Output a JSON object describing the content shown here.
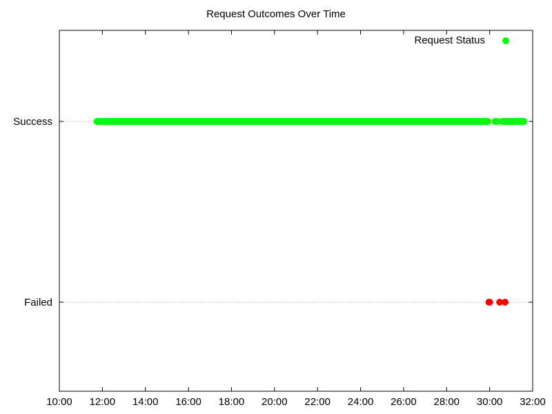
{
  "chart_data": {
    "type": "scatter",
    "title": "Request Outcomes Over Time",
    "xlabel": "",
    "ylabel": "",
    "x_ticks": [
      "10:00",
      "12:00",
      "14:00",
      "16:00",
      "18:00",
      "20:00",
      "22:00",
      "24:00",
      "26:00",
      "28:00",
      "30:00",
      "32:00"
    ],
    "xlim": [
      "10:00",
      "32:00"
    ],
    "y_categories": [
      "Failed",
      "Success"
    ],
    "grid": "horizontal dotted at category levels",
    "legend": {
      "label": "Request Status",
      "position": "top-right"
    },
    "series": [
      {
        "name": "Request Status",
        "points": [
          {
            "x_range": [
              "11:45",
              "29:55"
            ],
            "y": "Success",
            "color": "#00ff00",
            "dense": true
          },
          {
            "x_range": [
              "30:15",
              "30:20"
            ],
            "y": "Success",
            "color": "#00ff00",
            "dense": true
          },
          {
            "x_range": [
              "30:35",
              "31:35"
            ],
            "y": "Success",
            "color": "#00ff00",
            "dense": true
          },
          {
            "x": "29:58",
            "y": "Failed",
            "color": "#ff0000"
          },
          {
            "x": "30:00",
            "y": "Failed",
            "color": "#ff0000"
          },
          {
            "x": "30:28",
            "y": "Failed",
            "color": "#ff0000"
          },
          {
            "x": "30:43",
            "y": "Failed",
            "color": "#ff0000"
          }
        ]
      }
    ]
  },
  "colors": {
    "success": "#00ff00",
    "failed": "#ff0000",
    "axis": "#000000",
    "grid": "#a0a0a0"
  }
}
